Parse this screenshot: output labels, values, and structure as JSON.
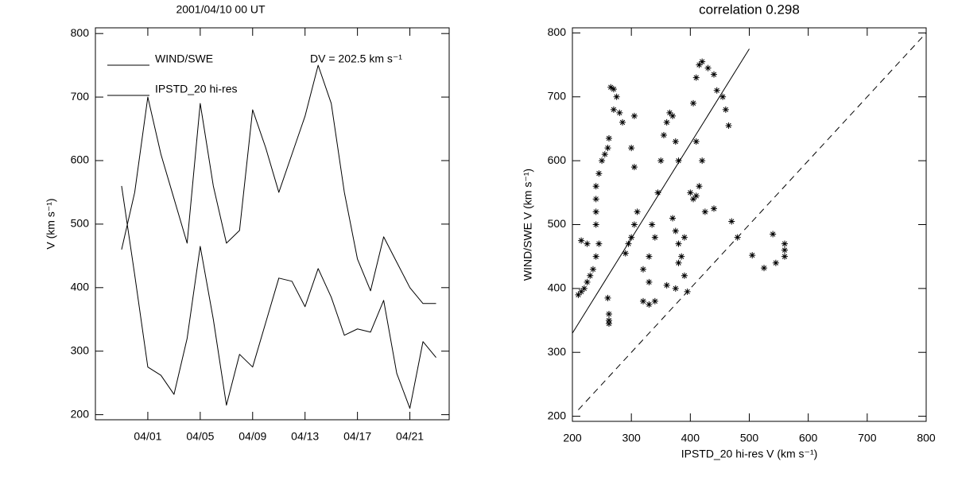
{
  "chart_data": [
    {
      "type": "line",
      "title": "2001/04/10 00 UT",
      "ylabel": "V (km s⁻¹)",
      "annotation": "DV = 202.5 km s⁻¹",
      "legend": "upper left",
      "x": [
        "03/30",
        "03/31",
        "04/01",
        "04/02",
        "04/03",
        "04/04",
        "04/05",
        "04/06",
        "04/07",
        "04/08",
        "04/09",
        "04/10",
        "04/11",
        "04/12",
        "04/13",
        "04/14",
        "04/15",
        "04/16",
        "04/17",
        "04/18",
        "04/19",
        "04/20",
        "04/21",
        "04/22",
        "04/23"
      ],
      "series": [
        {
          "name": "WIND/SWE",
          "color": "#000000",
          "values": [
            460,
            550,
            700,
            610,
            540,
            470,
            690,
            560,
            470,
            490,
            680,
            620,
            550,
            610,
            670,
            750,
            690,
            550,
            445,
            395,
            480,
            440,
            400,
            375,
            375
          ]
        },
        {
          "name": "IPSTD_20 hi-res",
          "color": "#000000",
          "values": [
            560,
            420,
            275,
            262,
            232,
            320,
            465,
            350,
            215,
            295,
            275,
            345,
            415,
            410,
            370,
            430,
            385,
            325,
            335,
            330,
            380,
            265,
            210,
            315,
            290
          ]
        }
      ],
      "xlim": [
        "03/28",
        "04/24"
      ],
      "xticks": [
        "04/01",
        "04/05",
        "04/09",
        "04/13",
        "04/17",
        "04/21"
      ],
      "ylim": [
        192,
        809
      ],
      "yticks": [
        200,
        300,
        400,
        500,
        600,
        700,
        800
      ]
    },
    {
      "type": "scatter",
      "title": "correlation 0.298",
      "xlabel": "IPSTD_20 hi-res V (km s⁻¹)",
      "ylabel": "WIND/SWE V (km s⁻¹)",
      "color": "#000000",
      "x": [
        262,
        262,
        262,
        260,
        210,
        215,
        220,
        225,
        230,
        235,
        240,
        245,
        225,
        215,
        240,
        240,
        240,
        240,
        245,
        250,
        255,
        260,
        262,
        265,
        270,
        275,
        270,
        280,
        285,
        290,
        295,
        300,
        305,
        310,
        305,
        300,
        305,
        320,
        330,
        340,
        330,
        320,
        330,
        340,
        335,
        345,
        350,
        355,
        360,
        365,
        370,
        375,
        380,
        370,
        375,
        380,
        385,
        390,
        395,
        400,
        405,
        410,
        415,
        420,
        410,
        405,
        410,
        415,
        420,
        430,
        440,
        445,
        455,
        465,
        460,
        425,
        440,
        470,
        480,
        505,
        525,
        540,
        545,
        560,
        560,
        560,
        360,
        375,
        380,
        390
      ],
      "y": [
        345,
        350,
        360,
        385,
        390,
        395,
        400,
        410,
        420,
        430,
        450,
        470,
        470,
        475,
        500,
        520,
        540,
        560,
        580,
        600,
        610,
        620,
        635,
        715,
        712,
        700,
        680,
        675,
        660,
        455,
        470,
        480,
        500,
        520,
        590,
        620,
        670,
        380,
        375,
        380,
        410,
        430,
        450,
        480,
        500,
        550,
        600,
        640,
        660,
        675,
        670,
        630,
        600,
        510,
        490,
        470,
        450,
        420,
        395,
        550,
        540,
        545,
        560,
        600,
        630,
        690,
        730,
        750,
        755,
        745,
        735,
        710,
        700,
        655,
        680,
        520,
        525,
        505,
        480,
        452,
        432,
        485,
        440,
        470,
        450,
        460,
        405,
        400,
        440,
        480
      ],
      "fit_line": {
        "x": [
          200,
          500
        ],
        "y": [
          330,
          775
        ]
      },
      "reference_line": {
        "x": [
          210,
          800
        ],
        "y": [
          210,
          800
        ]
      },
      "xlim": [
        200,
        800
      ],
      "xticks": [
        200,
        300,
        400,
        500,
        600,
        700,
        800
      ],
      "ylim": [
        192,
        808
      ],
      "yticks": [
        200,
        300,
        400,
        500,
        600,
        700,
        800
      ]
    }
  ]
}
